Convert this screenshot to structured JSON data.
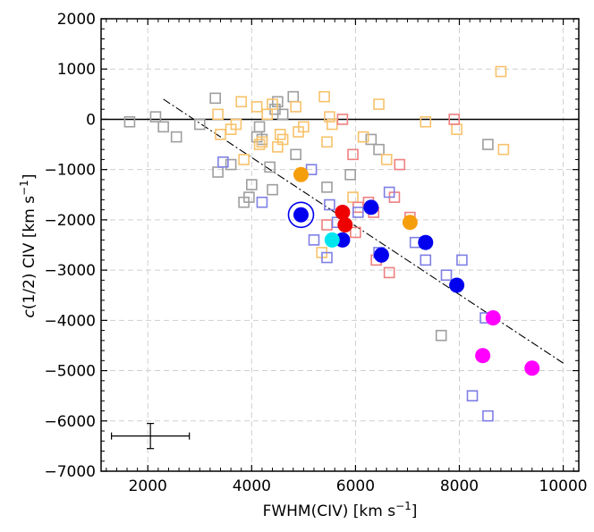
{
  "chart_data": {
    "type": "scatter",
    "xlabel_main": "FWHM(CIV) [km s",
    "xlabel_sup": "−1",
    "xlabel_end": "]",
    "ylabel_italic": "c",
    "ylabel_main": "(1/2) CIV [km s",
    "ylabel_sup": "−1",
    "ylabel_end": "]",
    "xlim": [
      1100,
      10300
    ],
    "ylim": [
      -7000,
      2000
    ],
    "xticks": [
      2000,
      4000,
      6000,
      8000,
      10000
    ],
    "yticks": [
      2000,
      1000,
      0,
      -1000,
      -2000,
      -3000,
      -4000,
      -5000,
      -6000,
      -7000
    ],
    "xtick_labels": [
      "2000",
      "4000",
      "6000",
      "8000",
      "10000"
    ],
    "ytick_labels": [
      "2000",
      "1000",
      "0",
      "−1000",
      "−2000",
      "−3000",
      "−4000",
      "−5000",
      "−6000",
      "−7000"
    ],
    "grid": true,
    "zero_line": 0,
    "trend_line": {
      "x": [
        2300,
        10000
      ],
      "y": [
        400,
        -4850
      ],
      "style": "dash-dot"
    },
    "error_bar": {
      "x": 2050,
      "y": -6300,
      "xerr": 750,
      "yerr": 250
    },
    "colors": {
      "gray": "#9e9e9e",
      "orange_light": "#f7c26b",
      "red_light": "#ee8080",
      "blue_light": "#7f7fe6",
      "orange": "#f59e0b",
      "red": "#ee0000",
      "blue": "#0000ee",
      "cyan": "#00e5ee",
      "magenta": "#ff00ff"
    },
    "series": [
      {
        "marker": "open-square",
        "color_key": "gray",
        "points": [
          [
            1650,
            -50
          ],
          [
            2150,
            50
          ],
          [
            2300,
            -150
          ],
          [
            2550,
            -350
          ],
          [
            3000,
            -100
          ],
          [
            3300,
            420
          ],
          [
            3350,
            -1050
          ],
          [
            3600,
            -900
          ],
          [
            3850,
            -1650
          ],
          [
            3950,
            -1550
          ],
          [
            4000,
            -1300
          ],
          [
            4100,
            -350
          ],
          [
            4150,
            -150
          ],
          [
            4200,
            -400
          ],
          [
            4350,
            -950
          ],
          [
            4400,
            -1400
          ],
          [
            4450,
            200
          ],
          [
            4500,
            350
          ],
          [
            4600,
            100
          ],
          [
            4800,
            450
          ],
          [
            4850,
            -700
          ],
          [
            5450,
            -1350
          ],
          [
            5900,
            -1100
          ],
          [
            6300,
            -400
          ],
          [
            6450,
            -600
          ],
          [
            7650,
            -4300
          ],
          [
            8550,
            -500
          ]
        ]
      },
      {
        "marker": "open-square",
        "color_key": "orange_light",
        "points": [
          [
            3350,
            100
          ],
          [
            3400,
            -300
          ],
          [
            3600,
            -200
          ],
          [
            3700,
            -100
          ],
          [
            3800,
            350
          ],
          [
            3850,
            -800
          ],
          [
            4100,
            250
          ],
          [
            4150,
            -500
          ],
          [
            4200,
            -450
          ],
          [
            4300,
            100
          ],
          [
            4400,
            300
          ],
          [
            4500,
            -550
          ],
          [
            4550,
            -300
          ],
          [
            4600,
            -400
          ],
          [
            4850,
            250
          ],
          [
            4900,
            -250
          ],
          [
            5000,
            -150
          ],
          [
            5350,
            -2650
          ],
          [
            5400,
            450
          ],
          [
            5450,
            -450
          ],
          [
            5500,
            50
          ],
          [
            5550,
            -100
          ],
          [
            5950,
            -1550
          ],
          [
            6150,
            -350
          ],
          [
            6450,
            300
          ],
          [
            6600,
            -800
          ],
          [
            7350,
            -50
          ],
          [
            7950,
            -200
          ],
          [
            8800,
            950
          ],
          [
            8850,
            -600
          ]
        ]
      },
      {
        "marker": "open-square",
        "color_key": "red_light",
        "points": [
          [
            5750,
            0
          ],
          [
            5450,
            -2100
          ],
          [
            5950,
            -700
          ],
          [
            6000,
            -2250
          ],
          [
            6050,
            -1750
          ],
          [
            6250,
            -1650
          ],
          [
            6350,
            -1850
          ],
          [
            6400,
            -2800
          ],
          [
            6650,
            -3050
          ],
          [
            6750,
            -1550
          ],
          [
            6850,
            -900
          ],
          [
            7050,
            -1950
          ],
          [
            7900,
            0
          ]
        ]
      },
      {
        "marker": "open-square",
        "color_key": "blue_light",
        "points": [
          [
            3450,
            -850
          ],
          [
            4200,
            -1650
          ],
          [
            5150,
            -1000
          ],
          [
            5200,
            -2400
          ],
          [
            5450,
            -2750
          ],
          [
            5500,
            -1700
          ],
          [
            5650,
            -2050
          ],
          [
            6050,
            -1850
          ],
          [
            6450,
            -2650
          ],
          [
            6650,
            -1450
          ],
          [
            7150,
            -2450
          ],
          [
            7350,
            -2800
          ],
          [
            7750,
            -3100
          ],
          [
            8050,
            -2800
          ],
          [
            8250,
            -5500
          ],
          [
            8500,
            -3950
          ],
          [
            8550,
            -5900
          ]
        ]
      },
      {
        "marker": "circle",
        "color_key": "orange",
        "points": [
          [
            4950,
            -1100
          ],
          [
            7050,
            -2050
          ]
        ]
      },
      {
        "marker": "circle",
        "color_key": "red",
        "points": [
          [
            5750,
            -1850
          ],
          [
            5800,
            -2100
          ]
        ]
      },
      {
        "marker": "circle",
        "color_key": "blue",
        "points": [
          [
            4950,
            -1900
          ],
          [
            5750,
            -2400
          ],
          [
            6300,
            -1750
          ],
          [
            6500,
            -2700
          ],
          [
            7350,
            -2450
          ],
          [
            7950,
            -3300
          ]
        ]
      },
      {
        "marker": "circle",
        "color_key": "cyan",
        "points": [
          [
            5550,
            -2400
          ]
        ]
      },
      {
        "marker": "circle",
        "color_key": "magenta",
        "points": [
          [
            8450,
            -4700
          ],
          [
            8650,
            -3950
          ],
          [
            9400,
            -4950
          ]
        ]
      },
      {
        "marker": "ring",
        "color_key": "blue",
        "points": [
          [
            4950,
            -1900
          ]
        ]
      }
    ]
  }
}
